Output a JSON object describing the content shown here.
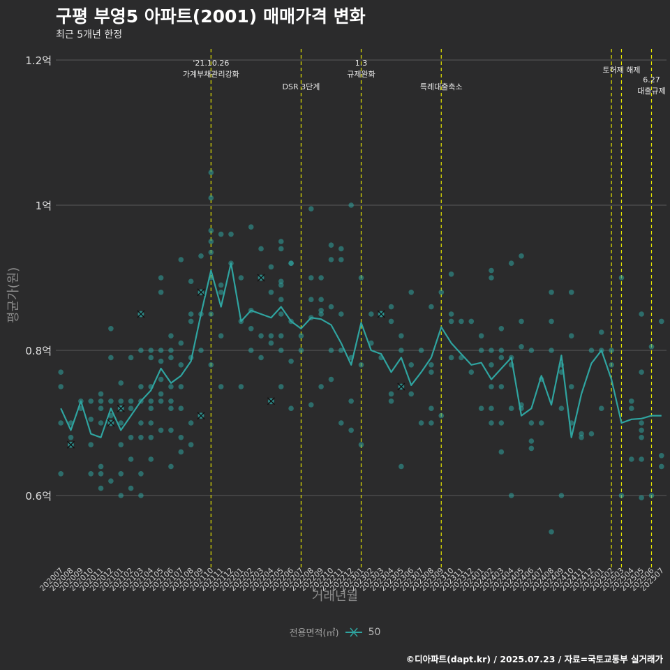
{
  "header": {
    "title": "구평 부영5 아파트(2001) 매매가격 변화",
    "subtitle": "최근 5개년 한정"
  },
  "legend": {
    "title": "전용면적(㎡)",
    "value": "50"
  },
  "footer": {
    "credit": "©디아파트(dapt.kr) / 2025.07.23 / 자료=국토교통부 실거래가"
  },
  "colors": {
    "background": "#2b2b2c",
    "series": "#2fa4a0",
    "event_line": "#e5e500",
    "grid": "#5a5a5a"
  },
  "chart_data": {
    "type": "line",
    "title": "구평 부영5 아파트(2001) 매매가격 변화",
    "xlabel": "거래년월",
    "ylabel": "평균가(원)",
    "ylim": [
      0.52,
      1.22
    ],
    "yticks": [
      0.6,
      0.8,
      1.0,
      1.2
    ],
    "ytick_labels": [
      "0.6억",
      "0.8억",
      "1억",
      "1.2억"
    ],
    "categories": [
      "202007",
      "202008",
      "202009",
      "202010",
      "202011",
      "202012",
      "202101",
      "202102",
      "202103",
      "202104",
      "202105",
      "202106",
      "202107",
      "202108",
      "202109",
      "202110",
      "202111",
      "202112",
      "202201",
      "202202",
      "202203",
      "202204",
      "202205",
      "202206",
      "202207",
      "202208",
      "202209",
      "202210",
      "202211",
      "202212",
      "202301",
      "202302",
      "202303",
      "202304",
      "202305",
      "202306",
      "202307",
      "202308",
      "202309",
      "202310",
      "202311",
      "202312",
      "202401",
      "202402",
      "202403",
      "202404",
      "202405",
      "202406",
      "202407",
      "202408",
      "202409",
      "202410",
      "202411",
      "202412",
      "202501",
      "202502",
      "202503",
      "202504",
      "202505",
      "202506",
      "202507"
    ],
    "series": [
      {
        "name": "50",
        "values": [
          0.72,
          0.69,
          0.73,
          0.685,
          0.68,
          0.72,
          0.69,
          0.71,
          0.73,
          0.745,
          0.775,
          0.755,
          0.765,
          0.785,
          0.85,
          0.91,
          0.86,
          0.92,
          0.84,
          0.855,
          0.85,
          0.845,
          0.86,
          0.84,
          0.83,
          0.845,
          0.843,
          0.835,
          0.81,
          0.78,
          0.838,
          0.8,
          0.795,
          0.77,
          0.79,
          0.752,
          0.77,
          0.79,
          0.832,
          0.81,
          0.795,
          0.78,
          0.783,
          0.76,
          0.775,
          0.79,
          0.71,
          0.72,
          0.765,
          0.725,
          0.793,
          0.68,
          0.74,
          0.782,
          0.8,
          0.76,
          0.7,
          0.705,
          0.706,
          0.71,
          0.71
        ]
      }
    ],
    "scatter": [
      [
        0,
        0.77
      ],
      [
        0,
        0.75
      ],
      [
        0,
        0.7
      ],
      [
        0,
        0.63
      ],
      [
        1,
        0.68
      ],
      [
        1,
        0.7
      ],
      [
        1,
        0.67
      ],
      [
        2,
        0.73
      ],
      [
        2,
        0.72
      ],
      [
        3,
        0.73
      ],
      [
        3,
        0.705
      ],
      [
        3,
        0.67
      ],
      [
        3,
        0.63
      ],
      [
        4,
        0.74
      ],
      [
        4,
        0.73
      ],
      [
        4,
        0.72
      ],
      [
        4,
        0.7
      ],
      [
        4,
        0.64
      ],
      [
        4,
        0.63
      ],
      [
        4,
        0.61
      ],
      [
        5,
        0.83
      ],
      [
        5,
        0.79
      ],
      [
        5,
        0.73
      ],
      [
        5,
        0.71
      ],
      [
        5,
        0.7
      ],
      [
        5,
        0.62
      ],
      [
        6,
        0.755
      ],
      [
        6,
        0.73
      ],
      [
        6,
        0.72
      ],
      [
        6,
        0.7
      ],
      [
        6,
        0.67
      ],
      [
        6,
        0.63
      ],
      [
        6,
        0.6
      ],
      [
        7,
        0.79
      ],
      [
        7,
        0.73
      ],
      [
        7,
        0.72
      ],
      [
        7,
        0.68
      ],
      [
        7,
        0.65
      ],
      [
        7,
        0.61
      ],
      [
        8,
        0.85
      ],
      [
        8,
        0.8
      ],
      [
        8,
        0.75
      ],
      [
        8,
        0.73
      ],
      [
        8,
        0.7
      ],
      [
        8,
        0.68
      ],
      [
        8,
        0.63
      ],
      [
        8,
        0.6
      ],
      [
        9,
        0.8
      ],
      [
        9,
        0.79
      ],
      [
        9,
        0.75
      ],
      [
        9,
        0.73
      ],
      [
        9,
        0.72
      ],
      [
        9,
        0.7
      ],
      [
        9,
        0.68
      ],
      [
        9,
        0.65
      ],
      [
        10,
        0.9
      ],
      [
        10,
        0.88
      ],
      [
        10,
        0.8
      ],
      [
        10,
        0.785
      ],
      [
        10,
        0.76
      ],
      [
        10,
        0.74
      ],
      [
        10,
        0.73
      ],
      [
        10,
        0.69
      ],
      [
        11,
        0.82
      ],
      [
        11,
        0.8
      ],
      [
        11,
        0.79
      ],
      [
        11,
        0.75
      ],
      [
        11,
        0.73
      ],
      [
        11,
        0.72
      ],
      [
        11,
        0.69
      ],
      [
        11,
        0.64
      ],
      [
        12,
        0.925
      ],
      [
        12,
        0.81
      ],
      [
        12,
        0.78
      ],
      [
        12,
        0.75
      ],
      [
        12,
        0.72
      ],
      [
        12,
        0.68
      ],
      [
        12,
        0.66
      ],
      [
        13,
        0.895
      ],
      [
        13,
        0.85
      ],
      [
        13,
        0.84
      ],
      [
        13,
        0.79
      ],
      [
        13,
        0.7
      ],
      [
        13,
        0.67
      ],
      [
        14,
        0.93
      ],
      [
        14,
        0.88
      ],
      [
        14,
        0.85
      ],
      [
        14,
        0.8
      ],
      [
        14,
        0.71
      ],
      [
        15,
        1.045
      ],
      [
        15,
        1.01
      ],
      [
        15,
        0.965
      ],
      [
        15,
        0.95
      ],
      [
        15,
        0.935
      ],
      [
        15,
        0.9
      ],
      [
        15,
        0.85
      ],
      [
        15,
        0.78
      ],
      [
        16,
        0.96
      ],
      [
        16,
        0.89
      ],
      [
        16,
        0.88
      ],
      [
        16,
        0.82
      ],
      [
        16,
        0.75
      ],
      [
        17,
        0.96
      ],
      [
        17,
        0.92
      ],
      [
        18,
        0.9
      ],
      [
        18,
        0.84
      ],
      [
        18,
        0.75
      ],
      [
        19,
        0.97
      ],
      [
        19,
        0.855
      ],
      [
        19,
        0.83
      ],
      [
        19,
        0.8
      ],
      [
        20,
        0.94
      ],
      [
        20,
        0.9
      ],
      [
        20,
        0.82
      ],
      [
        20,
        0.79
      ],
      [
        21,
        0.915
      ],
      [
        21,
        0.88
      ],
      [
        21,
        0.82
      ],
      [
        21,
        0.81
      ],
      [
        21,
        0.73
      ],
      [
        22,
        0.95
      ],
      [
        22,
        0.94
      ],
      [
        22,
        0.895
      ],
      [
        22,
        0.89
      ],
      [
        22,
        0.87
      ],
      [
        22,
        0.85
      ],
      [
        22,
        0.82
      ],
      [
        22,
        0.8
      ],
      [
        22,
        0.75
      ],
      [
        23,
        0.92
      ],
      [
        23,
        0.92
      ],
      [
        23,
        0.84
      ],
      [
        23,
        0.785
      ],
      [
        23,
        0.72
      ],
      [
        24,
        0.82
      ],
      [
        24,
        0.8
      ],
      [
        25,
        0.995
      ],
      [
        25,
        0.9
      ],
      [
        25,
        0.87
      ],
      [
        25,
        0.845
      ],
      [
        25,
        0.725
      ],
      [
        26,
        0.9
      ],
      [
        26,
        0.87
      ],
      [
        26,
        0.855
      ],
      [
        26,
        0.85
      ],
      [
        26,
        0.75
      ],
      [
        27,
        0.945
      ],
      [
        27,
        0.925
      ],
      [
        27,
        0.86
      ],
      [
        27,
        0.8
      ],
      [
        27,
        0.76
      ],
      [
        28,
        0.94
      ],
      [
        28,
        0.925
      ],
      [
        28,
        0.85
      ],
      [
        28,
        0.8
      ],
      [
        28,
        0.7
      ],
      [
        29,
        1.0
      ],
      [
        29,
        0.79
      ],
      [
        29,
        0.73
      ],
      [
        29,
        0.69
      ],
      [
        30,
        0.9
      ],
      [
        30,
        0.78
      ],
      [
        30,
        0.67
      ],
      [
        31,
        0.85
      ],
      [
        31,
        0.81
      ],
      [
        32,
        0.85
      ],
      [
        32,
        0.85
      ],
      [
        32,
        0.79
      ],
      [
        33,
        0.86
      ],
      [
        33,
        0.84
      ],
      [
        33,
        0.74
      ],
      [
        33,
        0.73
      ],
      [
        34,
        0.82
      ],
      [
        34,
        0.8
      ],
      [
        34,
        0.75
      ],
      [
        34,
        0.64
      ],
      [
        35,
        0.88
      ],
      [
        35,
        0.78
      ],
      [
        35,
        0.74
      ],
      [
        36,
        0.8
      ],
      [
        36,
        0.7
      ],
      [
        37,
        0.86
      ],
      [
        37,
        0.78
      ],
      [
        37,
        0.77
      ],
      [
        37,
        0.72
      ],
      [
        37,
        0.7
      ],
      [
        38,
        0.88
      ],
      [
        38,
        0.71
      ],
      [
        39,
        0.905
      ],
      [
        39,
        0.85
      ],
      [
        39,
        0.84
      ],
      [
        39,
        0.79
      ],
      [
        40,
        0.84
      ],
      [
        40,
        0.79
      ],
      [
        41,
        0.84
      ],
      [
        41,
        0.77
      ],
      [
        42,
        0.82
      ],
      [
        42,
        0.8
      ],
      [
        42,
        0.72
      ],
      [
        43,
        0.91
      ],
      [
        43,
        0.9
      ],
      [
        43,
        0.8
      ],
      [
        43,
        0.78
      ],
      [
        43,
        0.75
      ],
      [
        43,
        0.72
      ],
      [
        43,
        0.7
      ],
      [
        44,
        0.83
      ],
      [
        44,
        0.8
      ],
      [
        44,
        0.79
      ],
      [
        44,
        0.75
      ],
      [
        44,
        0.7
      ],
      [
        44,
        0.66
      ],
      [
        45,
        0.92
      ],
      [
        45,
        0.79
      ],
      [
        45,
        0.78
      ],
      [
        45,
        0.72
      ],
      [
        45,
        0.6
      ],
      [
        46,
        0.93
      ],
      [
        46,
        0.84
      ],
      [
        46,
        0.805
      ],
      [
        46,
        0.725
      ],
      [
        46,
        0.72
      ],
      [
        47,
        0.8
      ],
      [
        47,
        0.675
      ],
      [
        47,
        0.665
      ],
      [
        47,
        0.7
      ],
      [
        48,
        0.76
      ],
      [
        48,
        0.7
      ],
      [
        49,
        0.88
      ],
      [
        49,
        0.84
      ],
      [
        49,
        0.8
      ],
      [
        49,
        0.55
      ],
      [
        50,
        0.78
      ],
      [
        50,
        0.77
      ],
      [
        50,
        0.72
      ],
      [
        50,
        0.6
      ],
      [
        51,
        0.88
      ],
      [
        51,
        0.82
      ],
      [
        51,
        0.75
      ],
      [
        51,
        0.7
      ],
      [
        52,
        0.68
      ],
      [
        52,
        0.685
      ],
      [
        53,
        0.8
      ],
      [
        53,
        0.685
      ],
      [
        54,
        0.825
      ],
      [
        54,
        0.8
      ],
      [
        54,
        0.72
      ],
      [
        55,
        0.8
      ],
      [
        55,
        0.78
      ],
      [
        56,
        0.9
      ],
      [
        56,
        0.6
      ],
      [
        57,
        0.73
      ],
      [
        57,
        0.72
      ],
      [
        57,
        0.65
      ],
      [
        58,
        0.85
      ],
      [
        58,
        0.77
      ],
      [
        58,
        0.7
      ],
      [
        58,
        0.69
      ],
      [
        58,
        0.68
      ],
      [
        58,
        0.65
      ],
      [
        58,
        0.597
      ],
      [
        59,
        0.805
      ],
      [
        59,
        0.6
      ],
      [
        60,
        0.84
      ],
      [
        60,
        0.655
      ],
      [
        60,
        0.64
      ]
    ],
    "highlight_points": [
      [
        1,
        0.67
      ],
      [
        5,
        0.7
      ],
      [
        6,
        0.72
      ],
      [
        8,
        0.85
      ],
      [
        14,
        0.88
      ],
      [
        14,
        0.71
      ],
      [
        20,
        0.9
      ],
      [
        21,
        0.73
      ],
      [
        32,
        0.85
      ],
      [
        34,
        0.75
      ]
    ],
    "events": [
      {
        "x": 15.0,
        "labels": [
          "'21.10.26",
          "가계부채관리강화"
        ]
      },
      {
        "x": 24.0,
        "labels": [
          "DSR 3단계"
        ]
      },
      {
        "x": 30.0,
        "labels": [
          "1.3",
          "규제완화"
        ]
      },
      {
        "x": 38.0,
        "labels": [
          "특례대출축소"
        ]
      },
      {
        "x": 55.0,
        "labels": []
      },
      {
        "x": 56.0,
        "labels": [
          "토허제 해제"
        ]
      },
      {
        "x": 59.0,
        "labels": [
          "6.27",
          "대출규제"
        ]
      }
    ]
  }
}
